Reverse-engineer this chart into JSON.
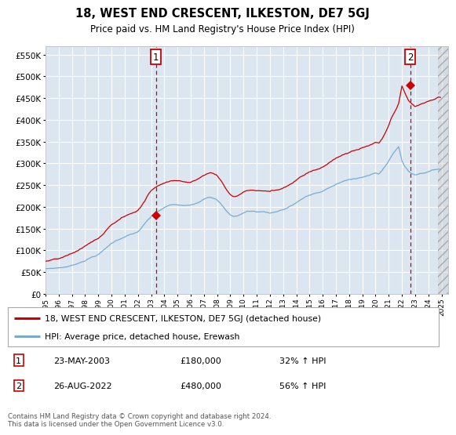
{
  "title": "18, WEST END CRESCENT, ILKESTON, DE7 5GJ",
  "subtitle": "Price paid vs. HM Land Registry's House Price Index (HPI)",
  "footer": "Contains HM Land Registry data © Crown copyright and database right 2024.\nThis data is licensed under the Open Government Licence v3.0.",
  "legend_line1": "18, WEST END CRESCENT, ILKESTON, DE7 5GJ (detached house)",
  "legend_line2": "HPI: Average price, detached house, Erewash",
  "annotation1_date": "23-MAY-2003",
  "annotation1_price": "£180,000",
  "annotation1_hpi": "32% ↑ HPI",
  "annotation2_date": "26-AUG-2022",
  "annotation2_price": "£480,000",
  "annotation2_hpi": "56% ↑ HPI",
  "line_color_red": "#cc0000",
  "line_color_blue": "#7aabcf",
  "background_color": "#dce6f1",
  "grid_color": "#ffffff",
  "ylim": [
    0,
    570000
  ],
  "yticks": [
    0,
    50000,
    100000,
    150000,
    200000,
    250000,
    300000,
    350000,
    400000,
    450000,
    500000,
    550000
  ],
  "sale1_x": 2003.37,
  "sale1_y": 180000,
  "sale2_x": 2022.63,
  "sale2_y": 480000,
  "vline1_x": 2003.37,
  "vline2_x": 2022.63,
  "xlim_start": 1995.0,
  "xlim_end": 2025.5,
  "hatch_start": 2024.75
}
